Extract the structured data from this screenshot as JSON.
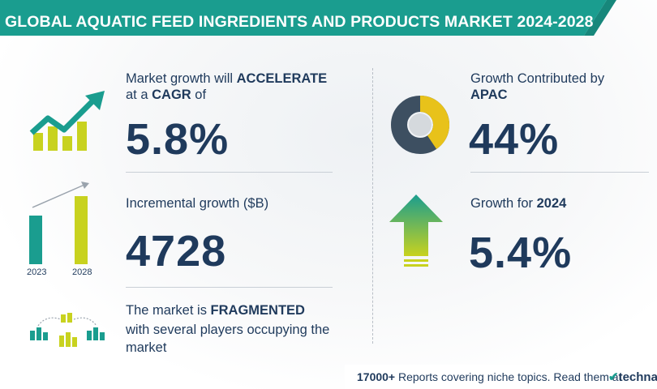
{
  "banner": {
    "title": "GLOBAL AQUATIC FEED INGREDIENTS AND PRODUCTS MARKET 2024-2028",
    "color": "#1a9d8f"
  },
  "cagr": {
    "line1_prefix": "Market growth will ",
    "line1_bold": "ACCELERATE",
    "line2_prefix": "at a ",
    "line2_bold": "CAGR",
    "line2_suffix": "  of",
    "value": "5.8%"
  },
  "incremental": {
    "label": "Incremental growth ($B)",
    "value": "4728",
    "year_start": "2023",
    "year_end": "2028"
  },
  "fragmented": {
    "line1_prefix": "The market is ",
    "line1_bold": "FRAGMENTED",
    "line2": "with several players occupying the",
    "line3": "market"
  },
  "region": {
    "line1": "Growth Contributed by",
    "line2_bold": "APAC",
    "value": "44%"
  },
  "yoy": {
    "label_prefix": "Growth for  ",
    "label_bold": "2024",
    "value": "5.4%"
  },
  "footer": {
    "count": "17000+",
    "text": " Reports covering niche topics. Read them at",
    "logo": "technavio"
  },
  "colors": {
    "teal": "#1a9d8f",
    "lime": "#c8d21f",
    "navy": "#1f3a5c",
    "gray": "#3d4f61"
  },
  "icons": [
    "growth-chart-icon",
    "bar-comparison-icon",
    "vendor-buildings-icon",
    "donut-chart-icon",
    "up-arrow-icon"
  ]
}
